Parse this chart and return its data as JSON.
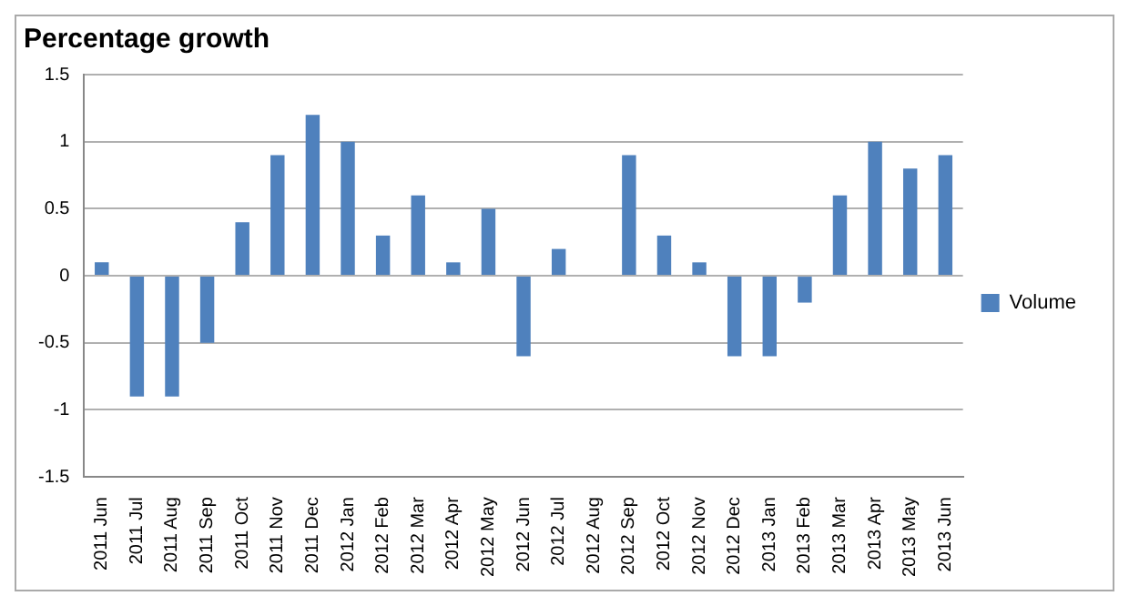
{
  "chart_data": {
    "type": "bar",
    "title": "Percentage growth",
    "categories": [
      "2011 Jun",
      "2011 Jul",
      "2011 Aug",
      "2011 Sep",
      "2011 Oct",
      "2011 Nov",
      "2011 Dec",
      "2012 Jan",
      "2012 Feb",
      "2012 Mar",
      "2012 Apr",
      "2012 May",
      "2012 Jun",
      "2012 Jul",
      "2012 Aug",
      "2012 Sep",
      "2012 Oct",
      "2012 Nov",
      "2012 Dec",
      "2013 Jan",
      "2013 Feb",
      "2013 Mar",
      "2013 Apr",
      "2013 May",
      "2013 Jun"
    ],
    "series": [
      {
        "name": "Volume",
        "color": "#4f81bd",
        "values": [
          0.1,
          -0.9,
          -0.9,
          -0.5,
          0.4,
          0.9,
          1.2,
          1.0,
          0.3,
          0.6,
          0.1,
          0.5,
          -0.6,
          0.2,
          0,
          0.9,
          0.3,
          0.1,
          -0.6,
          -0.6,
          -0.2,
          0.6,
          1.0,
          0.8,
          0.9
        ]
      }
    ],
    "ylim": [
      -1.5,
      1.5
    ],
    "yticks": [
      -1.5,
      -1,
      -0.5,
      0,
      0.5,
      1,
      1.5
    ],
    "grid": "y",
    "legend": "right"
  }
}
